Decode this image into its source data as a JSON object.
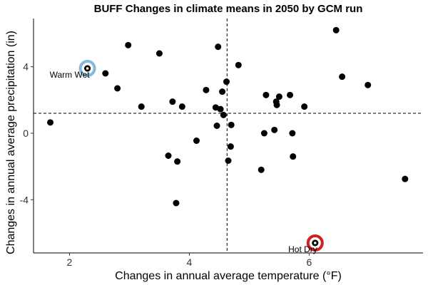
{
  "chart_data": {
    "type": "scatter",
    "title": "BUFF Changes in climate means in 2050 by GCM run",
    "xlabel": "Changes in annual average temperature (°F)",
    "ylabel": "Changes in annual average precipitation (in)",
    "xlim": [
      1.4,
      7.9
    ],
    "ylim": [
      -7.2,
      6.9
    ],
    "xticks": [
      2,
      4,
      6
    ],
    "yticks": [
      -4,
      0,
      4
    ],
    "grid": false,
    "reference_lines": {
      "x": 4.63,
      "y": 1.2
    },
    "points": [
      {
        "x": 1.68,
        "y": 0.65
      },
      {
        "x": 2.3,
        "y": 3.9
      },
      {
        "x": 2.6,
        "y": 3.6
      },
      {
        "x": 2.8,
        "y": 2.7
      },
      {
        "x": 2.98,
        "y": 5.3
      },
      {
        "x": 3.2,
        "y": 1.6
      },
      {
        "x": 3.5,
        "y": 4.8
      },
      {
        "x": 3.65,
        "y": -1.35
      },
      {
        "x": 3.72,
        "y": 1.9
      },
      {
        "x": 3.8,
        "y": -1.7
      },
      {
        "x": 3.78,
        "y": -4.2
      },
      {
        "x": 3.88,
        "y": 1.6
      },
      {
        "x": 4.12,
        "y": -0.45
      },
      {
        "x": 4.28,
        "y": 2.6
      },
      {
        "x": 4.44,
        "y": 1.55
      },
      {
        "x": 4.46,
        "y": 0.45
      },
      {
        "x": 4.48,
        "y": 5.2
      },
      {
        "x": 4.52,
        "y": 1.45
      },
      {
        "x": 4.55,
        "y": 2.5
      },
      {
        "x": 4.57,
        "y": 1.1
      },
      {
        "x": 4.62,
        "y": 3.1
      },
      {
        "x": 4.65,
        "y": -1.65
      },
      {
        "x": 4.69,
        "y": -0.8
      },
      {
        "x": 4.7,
        "y": 0.5
      },
      {
        "x": 4.82,
        "y": 4.1
      },
      {
        "x": 5.2,
        "y": -2.2
      },
      {
        "x": 5.25,
        "y": 0.0
      },
      {
        "x": 5.28,
        "y": 2.3
      },
      {
        "x": 5.42,
        "y": 0.2
      },
      {
        "x": 5.45,
        "y": 1.9
      },
      {
        "x": 5.46,
        "y": 1.7
      },
      {
        "x": 5.5,
        "y": 2.2
      },
      {
        "x": 5.68,
        "y": 2.3
      },
      {
        "x": 5.72,
        "y": 0.0
      },
      {
        "x": 5.73,
        "y": -1.4
      },
      {
        "x": 5.92,
        "y": 1.6
      },
      {
        "x": 6.1,
        "y": -6.6
      },
      {
        "x": 6.45,
        "y": 6.2
      },
      {
        "x": 6.55,
        "y": 3.4
      },
      {
        "x": 6.98,
        "y": 2.9
      },
      {
        "x": 7.6,
        "y": -2.75
      }
    ],
    "highlights": [
      {
        "label": "Warm Wet",
        "x": 2.3,
        "y": 3.9,
        "color": "#7fb8e0"
      },
      {
        "label": "Hot Dry",
        "x": 6.1,
        "y": -6.6,
        "color": "#d22020"
      }
    ],
    "point_color": "#000000"
  }
}
